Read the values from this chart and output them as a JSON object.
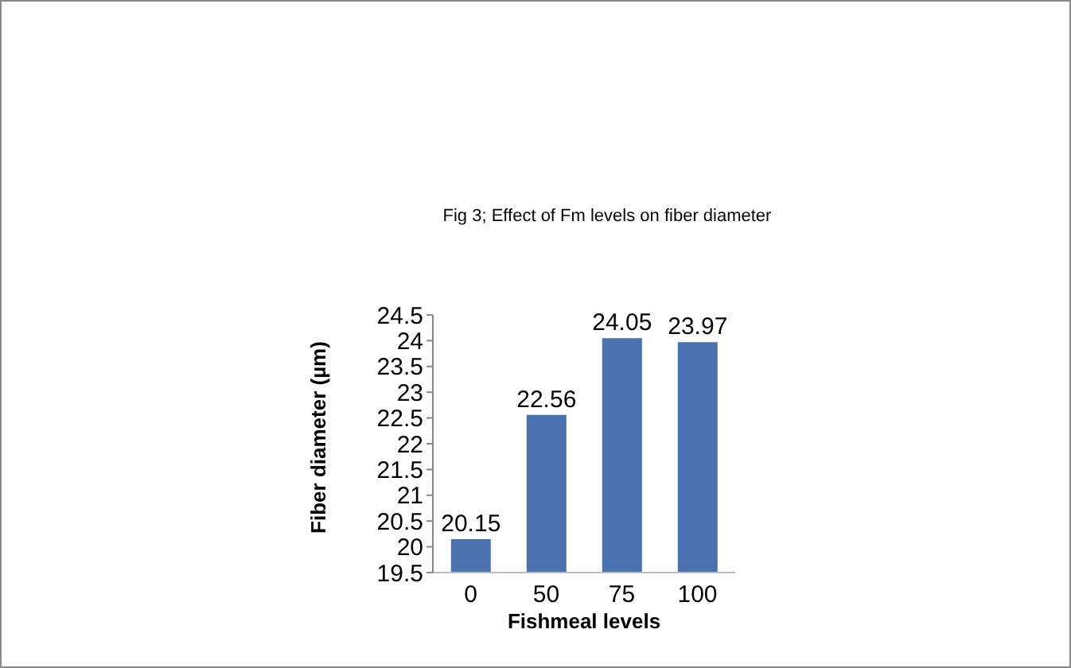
{
  "chart_data": {
    "type": "bar",
    "title": "Fig 3; Effect of Fm levels on fiber diameter",
    "xlabel": "Fishmeal levels",
    "ylabel": "Fiber diameter (µm)",
    "categories": [
      "0",
      "50",
      "75",
      "100"
    ],
    "series": [
      {
        "color": "#4a72b0",
        "values": [
          20.15,
          22.56,
          24.05,
          23.97
        ]
      }
    ],
    "ylim": [
      19.5,
      24.5
    ],
    "yticks": [
      19.5,
      20,
      20.5,
      21,
      21.5,
      22,
      22.5,
      23,
      23.5,
      24,
      24.5
    ],
    "data_labels": true,
    "grid": false,
    "legend": false
  }
}
